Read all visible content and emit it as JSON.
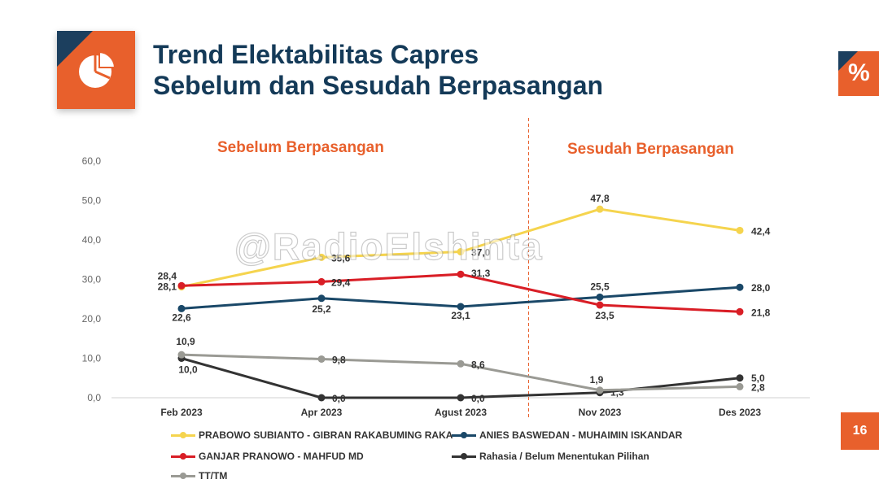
{
  "header": {
    "title_line1": "Trend Elektabilitas Capres",
    "title_line2": "Sebelum dan Sesudah Berpasangan",
    "percent_badge": "%",
    "page_number": "16"
  },
  "sections": {
    "before": "Sebelum Berpasangan",
    "after": "Sesudah Berpasangan"
  },
  "watermark": "@RadioElshinta",
  "colors": {
    "accent": "#e8602c",
    "navy": "#1c3f5e",
    "title": "#143a58"
  },
  "chart_data": {
    "type": "line",
    "categories": [
      "Feb 2023",
      "Apr 2023",
      "Agust 2023",
      "Nov 2023",
      "Des 2023"
    ],
    "ylim": [
      0,
      60
    ],
    "yticks": [
      "0,0",
      "10,0",
      "20,0",
      "30,0",
      "40,0",
      "50,0",
      "60,0"
    ],
    "grid": false,
    "divider_after_category": "Agust 2023",
    "legend_position": "bottom",
    "series": [
      {
        "name": "PRABOWO SUBIANTO - GIBRAN RAKABUMING RAKA",
        "color": "#f5d44e",
        "values": [
          28.1,
          35.6,
          37.0,
          47.8,
          42.4
        ],
        "labels": [
          "28,1",
          "35,6",
          "37,0",
          "47,8",
          "42,4"
        ]
      },
      {
        "name": "ANIES BASWEDAN - MUHAIMIN ISKANDAR",
        "color": "#1a4868",
        "values": [
          22.6,
          25.2,
          23.1,
          25.5,
          28.0
        ],
        "labels": [
          "22,6",
          "25,2",
          "23,1",
          "25,5",
          "28,0"
        ]
      },
      {
        "name": "GANJAR PRANOWO - MAHFUD MD",
        "color": "#d91e26",
        "values": [
          28.4,
          29.4,
          31.3,
          23.5,
          21.8
        ],
        "labels": [
          "28,4",
          "29,4",
          "31,3",
          "23,5",
          "21,8"
        ]
      },
      {
        "name": "Rahasia / Belum Menentukan Pilihan",
        "color": "#333333",
        "values": [
          10.0,
          0.0,
          0.0,
          1.3,
          5.0
        ],
        "labels": [
          "10,0",
          "0,0",
          "0,0",
          "1,3",
          "5,0"
        ]
      },
      {
        "name": "TT/TM",
        "color": "#9a9a94",
        "values": [
          10.9,
          9.8,
          8.6,
          1.9,
          2.8
        ],
        "labels": [
          "10,9",
          "9,8",
          "8,6",
          "1,9",
          "2,8"
        ]
      }
    ]
  }
}
